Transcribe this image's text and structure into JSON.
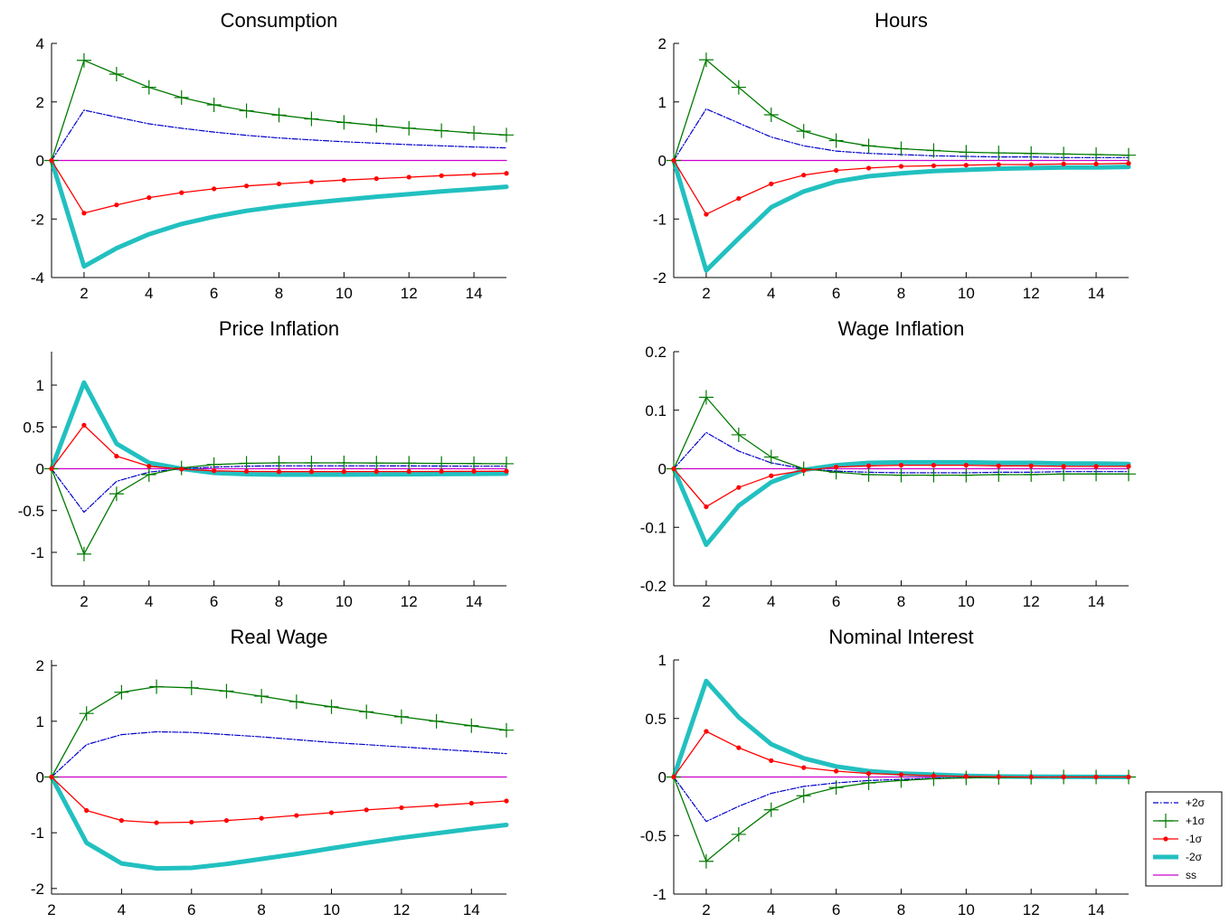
{
  "series_styles": [
    {
      "key": "p2",
      "color": "#0000cc",
      "dash": "6,2,1.5,2",
      "marker": "none"
    },
    {
      "key": "p1",
      "color": "#007a00",
      "dash": "",
      "marker": "plus"
    },
    {
      "key": "m1",
      "color": "#ff0000",
      "dash": "",
      "marker": "dot"
    },
    {
      "key": "m2",
      "color": "#22c0c0",
      "dash": "",
      "marker": "none"
    },
    {
      "key": "ss",
      "color": "#cc00cc",
      "dash": "",
      "marker": "none"
    }
  ],
  "legend": {
    "placement": "bottom-right",
    "labels": [
      "+2σ",
      "+1σ",
      "-1σ",
      "-2σ",
      "ss"
    ]
  },
  "chart_data": [
    {
      "type": "line",
      "title": "Consumption",
      "xlim": [
        1,
        15
      ],
      "ylim": [
        -4,
        4
      ],
      "xticks": [
        "2",
        "4",
        "6",
        "8",
        "10",
        "12",
        "14"
      ],
      "yticks": [
        "-4",
        "-2",
        "0",
        "2",
        "4"
      ],
      "xtick_values": [
        2,
        4,
        6,
        8,
        10,
        12,
        14
      ],
      "ytick_values": [
        -4,
        -2,
        0,
        2,
        4
      ],
      "x": [
        1,
        2,
        3,
        4,
        5,
        6,
        7,
        8,
        9,
        10,
        11,
        12,
        13,
        14,
        15
      ],
      "series": [
        {
          "key": "p2",
          "values": [
            0,
            1.72,
            1.48,
            1.25,
            1.1,
            0.97,
            0.86,
            0.77,
            0.7,
            0.64,
            0.59,
            0.54,
            0.5,
            0.46,
            0.43
          ]
        },
        {
          "key": "p1",
          "values": [
            0,
            3.42,
            2.95,
            2.5,
            2.15,
            1.9,
            1.7,
            1.55,
            1.42,
            1.3,
            1.2,
            1.1,
            1.02,
            0.94,
            0.87
          ]
        },
        {
          "key": "m1",
          "values": [
            0,
            -1.8,
            -1.52,
            -1.27,
            -1.1,
            -0.97,
            -0.87,
            -0.8,
            -0.73,
            -0.67,
            -0.62,
            -0.57,
            -0.52,
            -0.48,
            -0.44
          ]
        },
        {
          "key": "m2",
          "values": [
            0,
            -3.62,
            -3.0,
            -2.52,
            -2.17,
            -1.92,
            -1.72,
            -1.57,
            -1.45,
            -1.34,
            -1.24,
            -1.15,
            -1.06,
            -0.98,
            -0.9
          ]
        },
        {
          "key": "ss",
          "values": [
            0,
            0,
            0,
            0,
            0,
            0,
            0,
            0,
            0,
            0,
            0,
            0,
            0,
            0,
            0
          ]
        }
      ]
    },
    {
      "type": "line",
      "title": "Hours",
      "xlim": [
        1,
        15
      ],
      "ylim": [
        -2,
        2
      ],
      "xticks": [
        "2",
        "4",
        "6",
        "8",
        "10",
        "12",
        "14"
      ],
      "yticks": [
        "-2",
        "-1",
        "0",
        "1",
        "2"
      ],
      "xtick_values": [
        2,
        4,
        6,
        8,
        10,
        12,
        14
      ],
      "ytick_values": [
        -2,
        -1,
        0,
        1,
        2
      ],
      "x": [
        1,
        2,
        3,
        4,
        5,
        6,
        7,
        8,
        9,
        10,
        11,
        12,
        13,
        14,
        15
      ],
      "series": [
        {
          "key": "p2",
          "values": [
            0,
            0.88,
            0.64,
            0.4,
            0.25,
            0.16,
            0.12,
            0.1,
            0.08,
            0.07,
            0.06,
            0.06,
            0.05,
            0.05,
            0.05
          ]
        },
        {
          "key": "p1",
          "values": [
            0,
            1.72,
            1.25,
            0.78,
            0.5,
            0.34,
            0.25,
            0.2,
            0.17,
            0.14,
            0.13,
            0.12,
            0.11,
            0.1,
            0.09
          ]
        },
        {
          "key": "m1",
          "values": [
            0,
            -0.92,
            -0.65,
            -0.4,
            -0.25,
            -0.17,
            -0.13,
            -0.1,
            -0.09,
            -0.08,
            -0.07,
            -0.07,
            -0.06,
            -0.06,
            -0.05
          ]
        },
        {
          "key": "m2",
          "values": [
            0,
            -1.88,
            -1.33,
            -0.8,
            -0.53,
            -0.36,
            -0.27,
            -0.22,
            -0.18,
            -0.16,
            -0.14,
            -0.13,
            -0.12,
            -0.12,
            -0.11
          ]
        },
        {
          "key": "ss",
          "values": [
            0,
            0,
            0,
            0,
            0,
            0,
            0,
            0,
            0,
            0,
            0,
            0,
            0,
            0,
            0
          ]
        }
      ]
    },
    {
      "type": "line",
      "title": "Price Inflation",
      "xlim": [
        1,
        15
      ],
      "ylim": [
        -1.4,
        1.4
      ],
      "xticks": [
        "2",
        "4",
        "6",
        "8",
        "10",
        "12",
        "14"
      ],
      "yticks": [
        "-1",
        "-0.5",
        "0",
        "0.5",
        "1"
      ],
      "xtick_values": [
        2,
        4,
        6,
        8,
        10,
        12,
        14
      ],
      "ytick_values": [
        -1,
        -0.5,
        0,
        0.5,
        1
      ],
      "x": [
        1,
        2,
        3,
        4,
        5,
        6,
        7,
        8,
        9,
        10,
        11,
        12,
        13,
        14,
        15
      ],
      "series": [
        {
          "key": "p2",
          "values": [
            0,
            -0.52,
            -0.15,
            -0.04,
            0.0,
            0.02,
            0.03,
            0.035,
            0.035,
            0.035,
            0.035,
            0.033,
            0.032,
            0.03,
            0.03
          ]
        },
        {
          "key": "p1",
          "values": [
            0,
            -1.02,
            -0.3,
            -0.07,
            0.01,
            0.05,
            0.065,
            0.07,
            0.07,
            0.07,
            0.068,
            0.066,
            0.064,
            0.062,
            0.06
          ]
        },
        {
          "key": "m1",
          "values": [
            0,
            0.52,
            0.15,
            0.03,
            -0.005,
            -0.025,
            -0.032,
            -0.035,
            -0.035,
            -0.035,
            -0.034,
            -0.033,
            -0.032,
            -0.031,
            -0.03
          ]
        },
        {
          "key": "m2",
          "values": [
            0,
            1.03,
            0.3,
            0.07,
            0.0,
            -0.05,
            -0.065,
            -0.07,
            -0.07,
            -0.07,
            -0.068,
            -0.066,
            -0.064,
            -0.062,
            -0.06
          ]
        },
        {
          "key": "ss",
          "values": [
            0,
            0,
            0,
            0,
            0,
            0,
            0,
            0,
            0,
            0,
            0,
            0,
            0,
            0,
            0
          ]
        }
      ]
    },
    {
      "type": "line",
      "title": "Wage Inflation",
      "xlim": [
        1,
        15
      ],
      "ylim": [
        -0.2,
        0.2
      ],
      "xticks": [
        "2",
        "4",
        "6",
        "8",
        "10",
        "12",
        "14"
      ],
      "yticks": [
        "-0.2",
        "-0.1",
        "0",
        "0.1",
        "0.2"
      ],
      "xtick_values": [
        2,
        4,
        6,
        8,
        10,
        12,
        14
      ],
      "ytick_values": [
        -0.2,
        -0.1,
        0,
        0.1,
        0.2
      ],
      "x": [
        1,
        2,
        3,
        4,
        5,
        6,
        7,
        8,
        9,
        10,
        11,
        12,
        13,
        14,
        15
      ],
      "series": [
        {
          "key": "p2",
          "values": [
            0,
            0.062,
            0.03,
            0.01,
            0.0,
            -0.004,
            -0.006,
            -0.007,
            -0.007,
            -0.007,
            -0.006,
            -0.006,
            -0.005,
            -0.005,
            -0.005
          ]
        },
        {
          "key": "p1",
          "values": [
            0,
            0.122,
            0.058,
            0.02,
            0.0,
            -0.006,
            -0.01,
            -0.011,
            -0.011,
            -0.011,
            -0.01,
            -0.01,
            -0.009,
            -0.009,
            -0.009
          ]
        },
        {
          "key": "m1",
          "values": [
            0,
            -0.065,
            -0.032,
            -0.012,
            -0.003,
            0.003,
            0.005,
            0.006,
            0.006,
            0.006,
            0.005,
            0.005,
            0.004,
            0.004,
            0.004
          ]
        },
        {
          "key": "m2",
          "values": [
            0,
            -0.13,
            -0.063,
            -0.023,
            -0.002,
            0.006,
            0.01,
            0.011,
            0.011,
            0.011,
            0.01,
            0.01,
            0.009,
            0.009,
            0.008
          ]
        },
        {
          "key": "ss",
          "values": [
            0,
            0,
            0,
            0,
            0,
            0,
            0,
            0,
            0,
            0,
            0,
            0,
            0,
            0,
            0
          ]
        }
      ]
    },
    {
      "type": "line",
      "title": "Real Wage",
      "xlim": [
        2,
        15
      ],
      "ylim": [
        -2.1,
        2.1
      ],
      "xticks": [
        "2",
        "4",
        "6",
        "8",
        "10",
        "12",
        "14"
      ],
      "yticks": [
        "-2",
        "-1",
        "0",
        "1",
        "2"
      ],
      "xtick_values": [
        2,
        4,
        6,
        8,
        10,
        12,
        14
      ],
      "ytick_values": [
        -2,
        -1,
        0,
        1,
        2
      ],
      "x": [
        2,
        3,
        4,
        5,
        6,
        7,
        8,
        9,
        10,
        11,
        12,
        13,
        14,
        15
      ],
      "series": [
        {
          "key": "p2",
          "values": [
            0,
            0.58,
            0.76,
            0.81,
            0.8,
            0.76,
            0.72,
            0.67,
            0.62,
            0.58,
            0.54,
            0.5,
            0.46,
            0.42
          ]
        },
        {
          "key": "p1",
          "values": [
            0,
            1.14,
            1.52,
            1.62,
            1.6,
            1.54,
            1.45,
            1.35,
            1.26,
            1.17,
            1.08,
            1.0,
            0.92,
            0.84
          ]
        },
        {
          "key": "m1",
          "values": [
            0,
            -0.6,
            -0.78,
            -0.82,
            -0.81,
            -0.78,
            -0.74,
            -0.69,
            -0.64,
            -0.59,
            -0.55,
            -0.51,
            -0.47,
            -0.43
          ]
        },
        {
          "key": "m2",
          "values": [
            0,
            -1.18,
            -1.55,
            -1.64,
            -1.63,
            -1.56,
            -1.47,
            -1.38,
            -1.28,
            -1.18,
            -1.09,
            -1.01,
            -0.93,
            -0.86
          ]
        },
        {
          "key": "ss",
          "values": [
            0,
            0,
            0,
            0,
            0,
            0,
            0,
            0,
            0,
            0,
            0,
            0,
            0,
            0
          ]
        }
      ]
    },
    {
      "type": "line",
      "title": "Nominal Interest",
      "xlim": [
        1,
        15
      ],
      "ylim": [
        -1,
        1
      ],
      "xticks": [
        "2",
        "4",
        "6",
        "8",
        "10",
        "12",
        "14"
      ],
      "yticks": [
        "-1",
        "-0.5",
        "0",
        "0.5",
        "1"
      ],
      "xtick_values": [
        2,
        4,
        6,
        8,
        10,
        12,
        14
      ],
      "ytick_values": [
        -1,
        -0.5,
        0,
        0.5,
        1
      ],
      "x": [
        1,
        2,
        3,
        4,
        5,
        6,
        7,
        8,
        9,
        10,
        11,
        12,
        13,
        14,
        15
      ],
      "series": [
        {
          "key": "p2",
          "values": [
            0,
            -0.38,
            -0.25,
            -0.14,
            -0.08,
            -0.05,
            -0.03,
            -0.02,
            -0.01,
            -0.005,
            0,
            0,
            0,
            0,
            0
          ]
        },
        {
          "key": "p1",
          "values": [
            0,
            -0.72,
            -0.49,
            -0.28,
            -0.16,
            -0.09,
            -0.05,
            -0.03,
            -0.015,
            -0.008,
            -0.004,
            -0.002,
            0,
            0,
            0
          ]
        },
        {
          "key": "m1",
          "values": [
            0,
            0.39,
            0.25,
            0.14,
            0.08,
            0.05,
            0.03,
            0.02,
            0.01,
            0.005,
            0.002,
            0,
            0,
            0,
            0
          ]
        },
        {
          "key": "m2",
          "values": [
            0,
            0.82,
            0.51,
            0.28,
            0.16,
            0.09,
            0.05,
            0.03,
            0.02,
            0.01,
            0.005,
            0.003,
            0.002,
            0.001,
            0
          ]
        },
        {
          "key": "ss",
          "values": [
            0,
            0,
            0,
            0,
            0,
            0,
            0,
            0,
            0,
            0,
            0,
            0,
            0,
            0,
            0
          ]
        }
      ]
    }
  ]
}
